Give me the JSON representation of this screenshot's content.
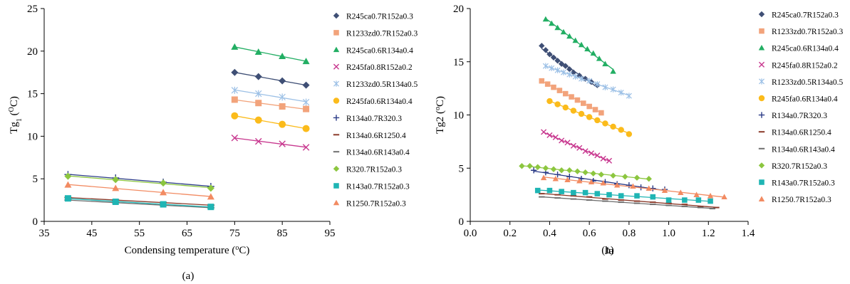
{
  "colors": {
    "R245ca0.7R152a0.3": "#3f4f75",
    "R1233zd0.7R152a0.3": "#f2a37b",
    "R245ca0.6R134a0.4": "#22ae63",
    "R245fa0.8R152a0.2": "#c8388f",
    "R1233zd0.5R134a0.5": "#9cc0e6",
    "R245fa0.6R134a0.4": "#fbbb1b",
    "R134a0.7R320.3": "#2b3b87",
    "R134a0.6R1250.4": "#8b3a2a",
    "R134a0.6R143a0.4": "#6f6f6f",
    "R320.7R152a0.3": "#8cc63f",
    "R143a0.7R152a0.3": "#1fb5b4",
    "R1250.7R152a0.3": "#f28b62"
  },
  "chart_data": [
    {
      "type": "scatter",
      "panel_label": "(a)",
      "xlabel_main": "Condensing temperature (",
      "xlabel_sup": "o",
      "xlabel_tail": "C)",
      "ylabel_main": "Tg",
      "ylabel_sub": "1",
      "ylabel_open": " (",
      "ylabel_sup": "O",
      "ylabel_tail": "C)",
      "xlim": [
        35,
        95
      ],
      "ylim": [
        0,
        25
      ],
      "xticks": [
        35,
        45,
        55,
        65,
        75,
        85,
        95
      ],
      "yticks": [
        0,
        5,
        10,
        15,
        20,
        25
      ],
      "grid": false,
      "legend_position": "right",
      "series": [
        {
          "name": "R245ca0.7R152a0.3",
          "marker": "diamond",
          "x": [
            75,
            80,
            85,
            90
          ],
          "y": [
            17.5,
            17.0,
            16.5,
            16.0
          ]
        },
        {
          "name": "R1233zd0.7R152a0.3",
          "marker": "square",
          "x": [
            75,
            80,
            85,
            90
          ],
          "y": [
            14.3,
            13.9,
            13.5,
            13.2
          ]
        },
        {
          "name": "R245ca0.6R134a0.4",
          "marker": "triangle",
          "x": [
            75,
            80,
            85,
            90
          ],
          "y": [
            20.5,
            19.9,
            19.4,
            18.8
          ]
        },
        {
          "name": "R245fa0.8R152a0.2",
          "marker": "x",
          "x": [
            75,
            80,
            85,
            90
          ],
          "y": [
            9.8,
            9.4,
            9.1,
            8.7
          ]
        },
        {
          "name": "R1233zd0.5R134a0.5",
          "marker": "star",
          "x": [
            75,
            80,
            85,
            90
          ],
          "y": [
            15.4,
            15.0,
            14.6,
            14.0
          ]
        },
        {
          "name": "R245fa0.6R134a0.4",
          "marker": "circle",
          "x": [
            75,
            80,
            85,
            90
          ],
          "y": [
            12.4,
            11.9,
            11.4,
            10.9
          ]
        },
        {
          "name": "R134a0.7R320.3",
          "marker": "plus",
          "x": [
            40,
            50,
            60,
            70
          ],
          "y": [
            5.5,
            5.1,
            4.6,
            4.1
          ]
        },
        {
          "name": "R134a0.6R1250.4",
          "marker": "dash",
          "x": [
            40,
            50,
            60,
            70
          ],
          "y": [
            2.8,
            2.5,
            2.2,
            1.9
          ]
        },
        {
          "name": "R134a0.6R143a0.4",
          "marker": "dash",
          "x": [
            40,
            50,
            60,
            70
          ],
          "y": [
            2.5,
            2.2,
            1.9,
            1.6
          ]
        },
        {
          "name": "R320.7R152a0.3",
          "marker": "diamond",
          "x": [
            40,
            50,
            60,
            70
          ],
          "y": [
            5.3,
            4.9,
            4.5,
            3.9
          ]
        },
        {
          "name": "R143a0.7R152a0.3",
          "marker": "square",
          "x": [
            40,
            50,
            60,
            70
          ],
          "y": [
            2.7,
            2.3,
            2.0,
            1.7
          ]
        },
        {
          "name": "R1250.7R152a0.3",
          "marker": "triangle",
          "x": [
            40,
            50,
            60,
            70
          ],
          "y": [
            4.3,
            3.9,
            3.4,
            2.9
          ]
        }
      ]
    },
    {
      "type": "scatter",
      "panel_label": "(b)",
      "xlabel_main": "Ja",
      "ylabel_main": "Tg2",
      "ylabel_open": " (",
      "ylabel_sup": "o",
      "ylabel_tail": "C)",
      "xlim": [
        0,
        1.4
      ],
      "ylim": [
        0,
        20
      ],
      "xticks": [
        0.0,
        0.2,
        0.4,
        0.6,
        0.8,
        1.0,
        1.2,
        1.4
      ],
      "xtick_labels": [
        "0.0",
        "0.2",
        "0.4",
        "0.6",
        "0.8",
        "1.0",
        "1.2",
        "1.4"
      ],
      "yticks": [
        0,
        5,
        10,
        15,
        20
      ],
      "grid": false,
      "legend_position": "right",
      "series": [
        {
          "name": "R245ca0.7R152a0.3",
          "marker": "diamond",
          "x": [
            0.36,
            0.38,
            0.4,
            0.42,
            0.44,
            0.46,
            0.48,
            0.5,
            0.52,
            0.55,
            0.58,
            0.61,
            0.64
          ],
          "y": [
            16.5,
            16.1,
            15.7,
            15.4,
            15.1,
            14.8,
            14.6,
            14.3,
            14.0,
            13.7,
            13.4,
            13.1,
            12.8
          ]
        },
        {
          "name": "R1233zd0.7R152a0.3",
          "marker": "square",
          "x": [
            0.36,
            0.39,
            0.42,
            0.45,
            0.48,
            0.51,
            0.54,
            0.57,
            0.6,
            0.63,
            0.66
          ],
          "y": [
            13.2,
            12.9,
            12.6,
            12.3,
            12.0,
            11.7,
            11.4,
            11.1,
            10.8,
            10.5,
            10.2
          ]
        },
        {
          "name": "R245ca0.6R134a0.4",
          "marker": "triangle",
          "x": [
            0.38,
            0.41,
            0.44,
            0.47,
            0.5,
            0.53,
            0.56,
            0.59,
            0.62,
            0.65,
            0.68,
            0.72
          ],
          "y": [
            19.0,
            18.6,
            18.2,
            17.8,
            17.4,
            17.0,
            16.6,
            16.2,
            15.8,
            15.3,
            14.8,
            14.1
          ]
        },
        {
          "name": "R245fa0.8R152a0.2",
          "marker": "x",
          "x": [
            0.37,
            0.4,
            0.43,
            0.46,
            0.49,
            0.52,
            0.55,
            0.58,
            0.61,
            0.64,
            0.67,
            0.7
          ],
          "y": [
            8.4,
            8.1,
            7.9,
            7.6,
            7.4,
            7.1,
            6.9,
            6.6,
            6.4,
            6.2,
            5.9,
            5.7
          ]
        },
        {
          "name": "R1233zd0.5R134a0.5",
          "marker": "star",
          "x": [
            0.38,
            0.41,
            0.44,
            0.47,
            0.5,
            0.53,
            0.56,
            0.6,
            0.64,
            0.68,
            0.72,
            0.76,
            0.8
          ],
          "y": [
            14.6,
            14.4,
            14.2,
            14.0,
            13.8,
            13.6,
            13.4,
            13.2,
            12.9,
            12.6,
            12.4,
            12.1,
            11.8
          ]
        },
        {
          "name": "R245fa0.6R134a0.4",
          "marker": "circle",
          "x": [
            0.4,
            0.44,
            0.48,
            0.52,
            0.56,
            0.6,
            0.64,
            0.68,
            0.72,
            0.76,
            0.8
          ],
          "y": [
            11.3,
            11.0,
            10.7,
            10.4,
            10.1,
            9.8,
            9.5,
            9.2,
            8.9,
            8.6,
            8.2
          ]
        },
        {
          "name": "R134a0.7R320.3",
          "marker": "plus",
          "x": [
            0.32,
            0.38,
            0.44,
            0.5,
            0.56,
            0.62,
            0.68,
            0.74,
            0.8,
            0.86,
            0.92,
            0.98
          ],
          "y": [
            4.8,
            4.6,
            4.4,
            4.2,
            4.0,
            3.8,
            3.7,
            3.5,
            3.4,
            3.2,
            3.1,
            3.0
          ]
        },
        {
          "name": "R134a0.6R1250.4",
          "marker": "dash",
          "x": [
            0.36,
            0.44,
            0.52,
            0.6,
            0.68,
            0.76,
            0.84,
            0.92,
            1.0,
            1.08,
            1.16,
            1.24
          ],
          "y": [
            2.6,
            2.5,
            2.4,
            2.3,
            2.1,
            2.0,
            1.9,
            1.8,
            1.7,
            1.6,
            1.4,
            1.3
          ]
        },
        {
          "name": "R134a0.6R143a0.4",
          "marker": "dash",
          "x": [
            0.36,
            0.44,
            0.52,
            0.6,
            0.68,
            0.76,
            0.84,
            0.92,
            1.0,
            1.08,
            1.16,
            1.22
          ],
          "y": [
            2.3,
            2.2,
            2.1,
            2.0,
            1.9,
            1.8,
            1.7,
            1.6,
            1.5,
            1.4,
            1.3,
            1.2
          ]
        },
        {
          "name": "R320.7R152a0.3",
          "marker": "diamond",
          "x": [
            0.26,
            0.3,
            0.34,
            0.38,
            0.42,
            0.46,
            0.5,
            0.54,
            0.58,
            0.62,
            0.66,
            0.72,
            0.78,
            0.84,
            0.9
          ],
          "y": [
            5.2,
            5.2,
            5.1,
            5.0,
            4.9,
            4.8,
            4.8,
            4.7,
            4.6,
            4.5,
            4.4,
            4.3,
            4.2,
            4.1,
            4.0
          ]
        },
        {
          "name": "R143a0.7R152a0.3",
          "marker": "square",
          "x": [
            0.34,
            0.4,
            0.46,
            0.52,
            0.58,
            0.64,
            0.7,
            0.76,
            0.84,
            0.92,
            1.0,
            1.08,
            1.15,
            1.21
          ],
          "y": [
            2.9,
            2.9,
            2.8,
            2.7,
            2.7,
            2.6,
            2.5,
            2.4,
            2.4,
            2.3,
            2.0,
            2.0,
            2.0,
            1.9
          ]
        },
        {
          "name": "R1250.7R152a0.3",
          "marker": "triangle",
          "x": [
            0.37,
            0.43,
            0.49,
            0.55,
            0.61,
            0.67,
            0.74,
            0.82,
            0.9,
            0.98,
            1.06,
            1.14,
            1.21,
            1.28
          ],
          "y": [
            4.1,
            4.0,
            3.9,
            3.8,
            3.7,
            3.6,
            3.4,
            3.3,
            3.1,
            2.9,
            2.7,
            2.5,
            2.4,
            2.3
          ]
        }
      ]
    }
  ]
}
